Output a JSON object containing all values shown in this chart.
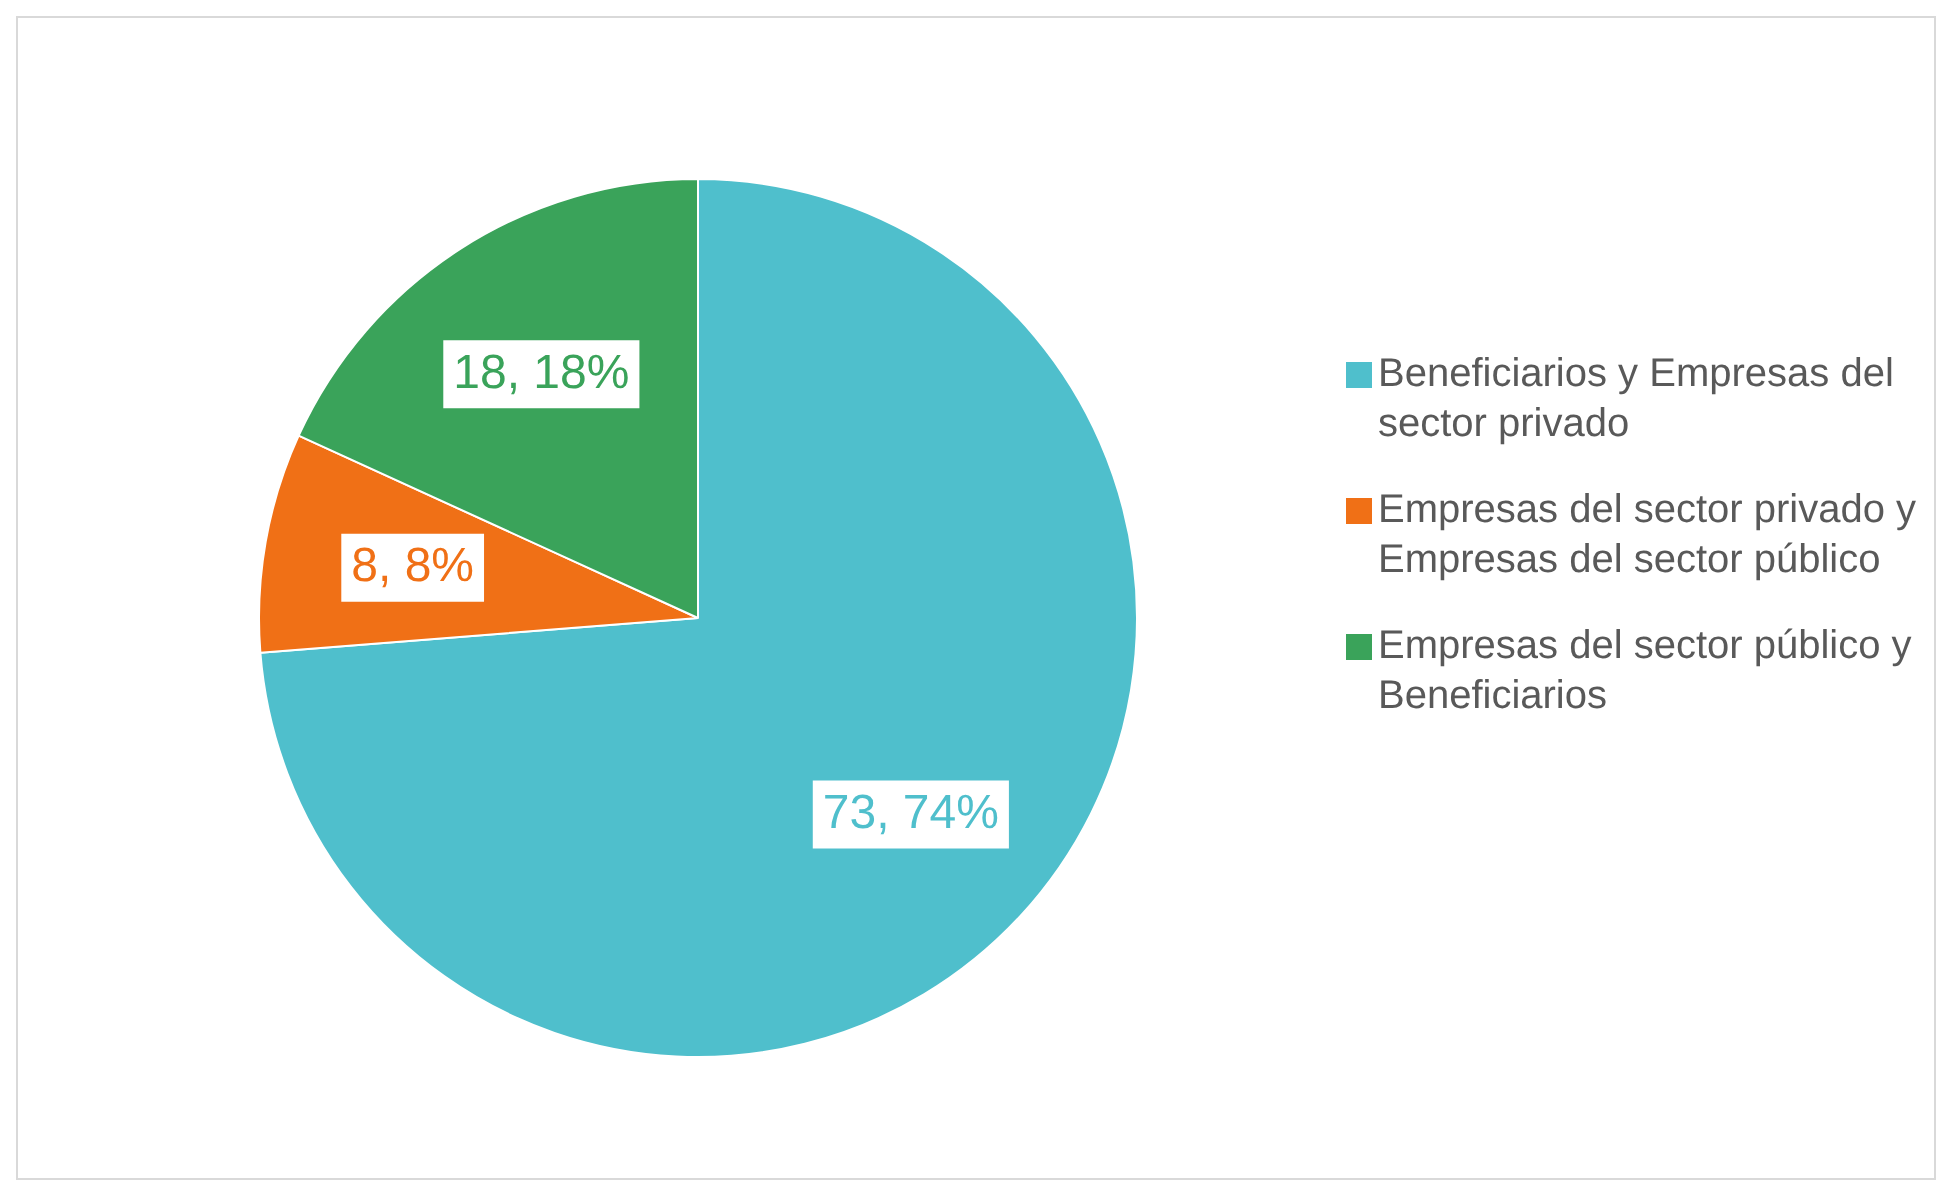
{
  "chart_data": {
    "type": "pie",
    "categories": [
      "Beneficiarios y Empresas del sector privado",
      "Empresas del sector privado y Empresas del sector público",
      "Empresas del sector público y Beneficiarios"
    ],
    "values": [
      73,
      8,
      18
    ],
    "colors": [
      "#4fbfcc",
      "#f07016",
      "#3aa35a"
    ],
    "value_labels": [
      "73, 74%",
      "8, 8%",
      "18, 18%"
    ],
    "legend": "right"
  }
}
